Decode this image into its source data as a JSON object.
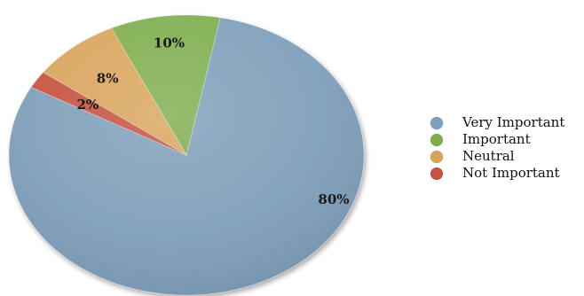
{
  "chart_data": {
    "type": "pie",
    "title": "",
    "slices": [
      {
        "label": "Very Important",
        "value": 80,
        "display": "80%",
        "color": "#7f9fba"
      },
      {
        "label": "Important",
        "value": 10,
        "display": "10%",
        "color": "#7fae4f"
      },
      {
        "label": "Neutral",
        "value": 8,
        "display": "8%",
        "color": "#d9a55c"
      },
      {
        "label": "Not Important",
        "value": 2,
        "display": "2%",
        "color": "#c5533f"
      }
    ],
    "legend_position": "right"
  }
}
